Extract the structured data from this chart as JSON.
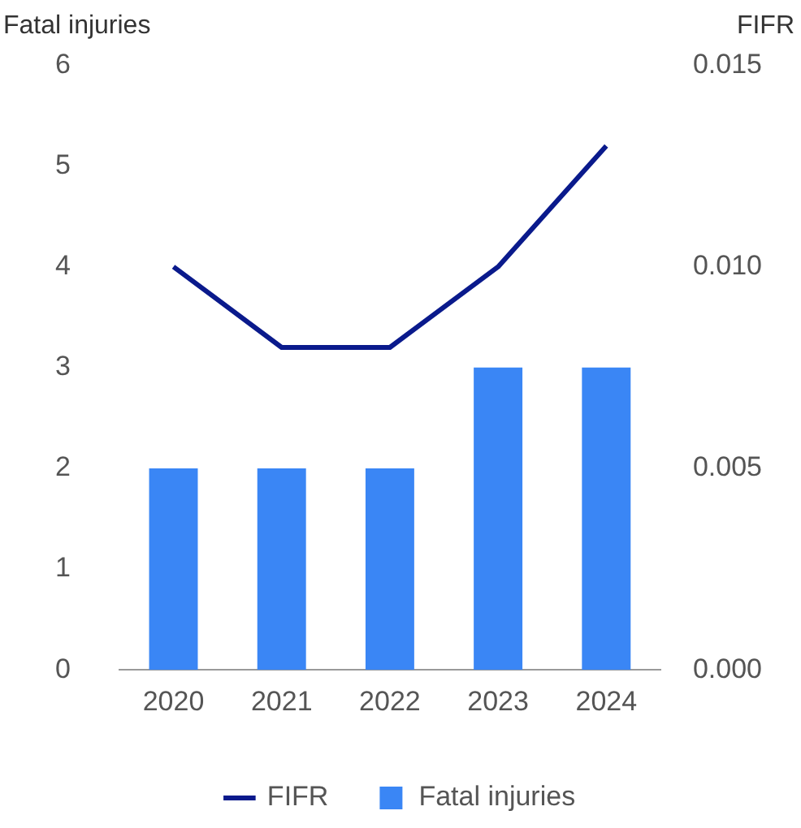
{
  "chart_data": {
    "type": "bar",
    "ylabel": "Fatal injuries",
    "y2label": "FIFR",
    "categories": [
      "2020",
      "2021",
      "2022",
      "2023",
      "2024"
    ],
    "series": [
      {
        "name": "FIFR",
        "type": "line",
        "axis": "y2",
        "color": "#0a1a8c",
        "values": [
          0.01,
          0.008,
          0.008,
          0.01,
          0.013
        ]
      },
      {
        "name": "Fatal injuries",
        "color": "#3a86f5",
        "values": [
          2,
          2,
          2,
          3,
          3
        ]
      }
    ],
    "ylim": [
      0,
      6
    ],
    "yticks": [
      0,
      1,
      2,
      3,
      4,
      5,
      6
    ],
    "y2lim": [
      0,
      0.015
    ],
    "y2ticks": [
      {
        "value": 0,
        "label": "0.000"
      },
      {
        "value": 0.005,
        "label": "0.005"
      },
      {
        "value": 0.01,
        "label": "0.010"
      },
      {
        "value": 0.015,
        "label": "0.015"
      }
    ],
    "grid": false,
    "legend": "bottom",
    "marker": "none",
    "line_style": "solid"
  }
}
